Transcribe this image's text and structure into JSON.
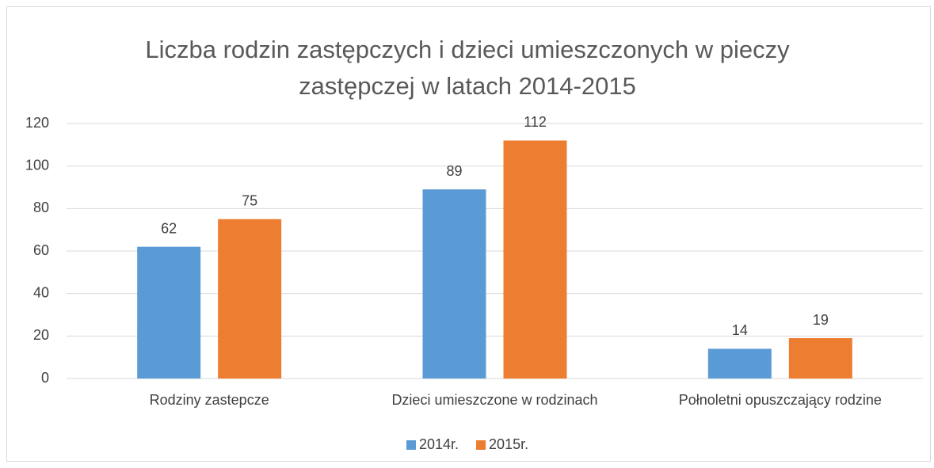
{
  "chart_data": {
    "type": "bar",
    "title": "Liczba rodzin zastępczych i dzieci umieszczonych w pieczy zastępczej w latach 2014-2015",
    "categories": [
      "Rodziny zastepcze",
      "Dzieci umieszczone w rodzinach",
      "Połnoletni opuszczający rodzine"
    ],
    "series": [
      {
        "name": "2014r.",
        "color": "#5b9bd5",
        "values": [
          62,
          89,
          14
        ]
      },
      {
        "name": "2015r.",
        "color": "#ed7d31",
        "values": [
          75,
          112,
          19
        ]
      }
    ],
    "ylim": [
      0,
      120
    ],
    "yticks": [
      0,
      20,
      40,
      60,
      80,
      100,
      120
    ],
    "grid": true,
    "legend": "bottom"
  }
}
